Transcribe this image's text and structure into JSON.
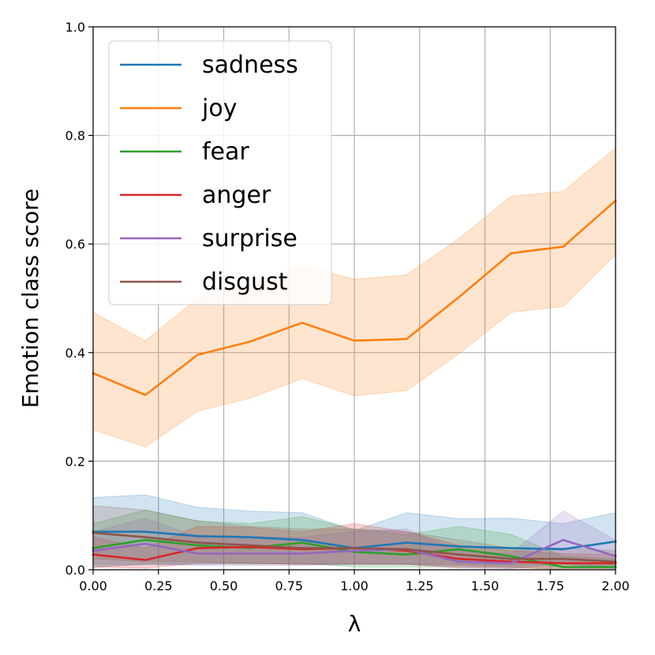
{
  "chart_data": {
    "type": "line",
    "title": "",
    "xlabel": "λ",
    "ylabel": "Emotion class score",
    "xlim": [
      0.0,
      2.0
    ],
    "ylim": [
      0.0,
      1.0
    ],
    "xticks": [
      "0.00",
      "0.25",
      "0.50",
      "0.75",
      "1.00",
      "1.25",
      "1.50",
      "1.75",
      "2.00"
    ],
    "yticks": [
      "0.0",
      "0.2",
      "0.4",
      "0.6",
      "0.8",
      "1.0"
    ],
    "grid": true,
    "legend_position": "top-left",
    "x": [
      0.0,
      0.2,
      0.4,
      0.6,
      0.8,
      1.0,
      1.2,
      1.4,
      1.6,
      1.8,
      2.0
    ],
    "series": [
      {
        "name": "sadness",
        "color": "#1f77b4",
        "values": [
          0.07,
          0.07,
          0.062,
          0.06,
          0.055,
          0.04,
          0.05,
          0.043,
          0.04,
          0.038,
          0.052
        ],
        "lower": [
          0.01,
          0.01,
          0.01,
          0.012,
          0.01,
          0.01,
          0.01,
          0.01,
          0.008,
          0.01,
          0.005
        ],
        "upper": [
          0.133,
          0.138,
          0.115,
          0.108,
          0.105,
          0.072,
          0.105,
          0.094,
          0.095,
          0.085,
          0.105
        ]
      },
      {
        "name": "joy",
        "color": "#ff7f0e",
        "values": [
          0.362,
          0.322,
          0.396,
          0.42,
          0.455,
          0.422,
          0.425,
          0.502,
          0.583,
          0.595,
          0.68
        ],
        "lower": [
          0.258,
          0.226,
          0.292,
          0.316,
          0.352,
          0.32,
          0.33,
          0.398,
          0.474,
          0.485,
          0.58
        ],
        "upper": [
          0.474,
          0.422,
          0.5,
          0.524,
          0.56,
          0.535,
          0.543,
          0.61,
          0.688,
          0.697,
          0.777
        ]
      },
      {
        "name": "fear",
        "color": "#2ca02c",
        "values": [
          0.04,
          0.055,
          0.045,
          0.04,
          0.05,
          0.033,
          0.028,
          0.038,
          0.025,
          0.005,
          0.005
        ],
        "lower": [
          0.005,
          0.01,
          0.012,
          0.01,
          0.012,
          0.005,
          0.005,
          0.005,
          0.005,
          0.0,
          0.0
        ],
        "upper": [
          0.085,
          0.11,
          0.09,
          0.085,
          0.098,
          0.075,
          0.065,
          0.08,
          0.065,
          0.025,
          0.02
        ]
      },
      {
        "name": "anger",
        "color": "#d62728",
        "values": [
          0.028,
          0.018,
          0.04,
          0.042,
          0.038,
          0.04,
          0.035,
          0.02,
          0.015,
          0.012,
          0.012
        ],
        "lower": [
          0.005,
          0.003,
          0.012,
          0.012,
          0.01,
          0.012,
          0.01,
          0.005,
          0.003,
          0.002,
          0.002
        ],
        "upper": [
          0.06,
          0.04,
          0.08,
          0.078,
          0.07,
          0.085,
          0.07,
          0.045,
          0.035,
          0.03,
          0.028
        ]
      },
      {
        "name": "surprise",
        "color": "#9467bd",
        "values": [
          0.035,
          0.048,
          0.03,
          0.03,
          0.03,
          0.035,
          0.038,
          0.015,
          0.012,
          0.055,
          0.025
        ],
        "lower": [
          0.005,
          0.01,
          0.008,
          0.008,
          0.008,
          0.01,
          0.01,
          0.003,
          0.002,
          0.012,
          0.003
        ],
        "upper": [
          0.07,
          0.095,
          0.06,
          0.06,
          0.06,
          0.07,
          0.075,
          0.035,
          0.03,
          0.108,
          0.055
        ]
      },
      {
        "name": "disgust",
        "color": "#8c564b",
        "values": [
          0.068,
          0.06,
          0.05,
          0.045,
          0.04,
          0.04,
          0.038,
          0.028,
          0.02,
          0.02,
          0.015
        ],
        "lower": [
          0.02,
          0.015,
          0.015,
          0.012,
          0.01,
          0.01,
          0.01,
          0.008,
          0.005,
          0.005,
          0.003
        ],
        "upper": [
          0.118,
          0.11,
          0.09,
          0.08,
          0.075,
          0.075,
          0.07,
          0.055,
          0.04,
          0.04,
          0.035
        ]
      }
    ]
  }
}
